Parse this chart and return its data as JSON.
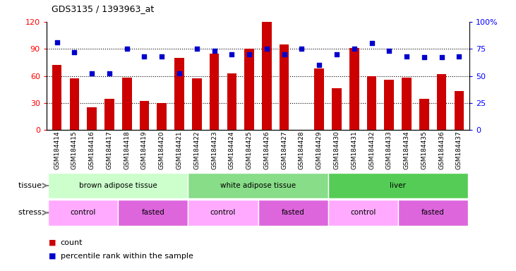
{
  "title": "GDS3135 / 1393963_at",
  "samples": [
    "GSM184414",
    "GSM184415",
    "GSM184416",
    "GSM184417",
    "GSM184418",
    "GSM184419",
    "GSM184420",
    "GSM184421",
    "GSM184422",
    "GSM184423",
    "GSM184424",
    "GSM184425",
    "GSM184426",
    "GSM184427",
    "GSM184428",
    "GSM184429",
    "GSM184430",
    "GSM184431",
    "GSM184432",
    "GSM184433",
    "GSM184434",
    "GSM184435",
    "GSM184436",
    "GSM184437"
  ],
  "counts": [
    72,
    57,
    25,
    35,
    58,
    32,
    30,
    80,
    57,
    85,
    63,
    90,
    120,
    95,
    0,
    68,
    46,
    91,
    60,
    56,
    58,
    35,
    62,
    43
  ],
  "percentiles": [
    81,
    72,
    52,
    52,
    75,
    68,
    68,
    52,
    75,
    73,
    70,
    70,
    75,
    70,
    75,
    60,
    70,
    75,
    80,
    73,
    68,
    67,
    67,
    68
  ],
  "bar_color": "#cc0000",
  "dot_color": "#0000cc",
  "ylim_left": [
    0,
    120
  ],
  "ylim_right": [
    0,
    100
  ],
  "yticks_left": [
    0,
    30,
    60,
    90,
    120
  ],
  "yticks_right": [
    0,
    25,
    50,
    75,
    100
  ],
  "ytick_labels_right": [
    "0",
    "25",
    "50",
    "75",
    "100%"
  ],
  "grid_lines": [
    30,
    60,
    90
  ],
  "tissue_groups": [
    {
      "label": "brown adipose tissue",
      "start": 0,
      "end": 8,
      "color": "#ccffcc"
    },
    {
      "label": "white adipose tissue",
      "start": 8,
      "end": 16,
      "color": "#88dd88"
    },
    {
      "label": "liver",
      "start": 16,
      "end": 24,
      "color": "#55cc55"
    }
  ],
  "stress_groups": [
    {
      "label": "control",
      "start": 0,
      "end": 4,
      "color": "#ffaaff"
    },
    {
      "label": "fasted",
      "start": 4,
      "end": 8,
      "color": "#dd66dd"
    },
    {
      "label": "control",
      "start": 8,
      "end": 12,
      "color": "#ffaaff"
    },
    {
      "label": "fasted",
      "start": 12,
      "end": 16,
      "color": "#dd66dd"
    },
    {
      "label": "control",
      "start": 16,
      "end": 20,
      "color": "#ffaaff"
    },
    {
      "label": "fasted",
      "start": 20,
      "end": 24,
      "color": "#dd66dd"
    }
  ],
  "legend_count_label": "count",
  "legend_pct_label": "percentile rank within the sample",
  "tissue_label": "tissue",
  "stress_label": "stress",
  "label_bg_color": "#d8d8d8",
  "plot_bg_color": "#ffffff"
}
